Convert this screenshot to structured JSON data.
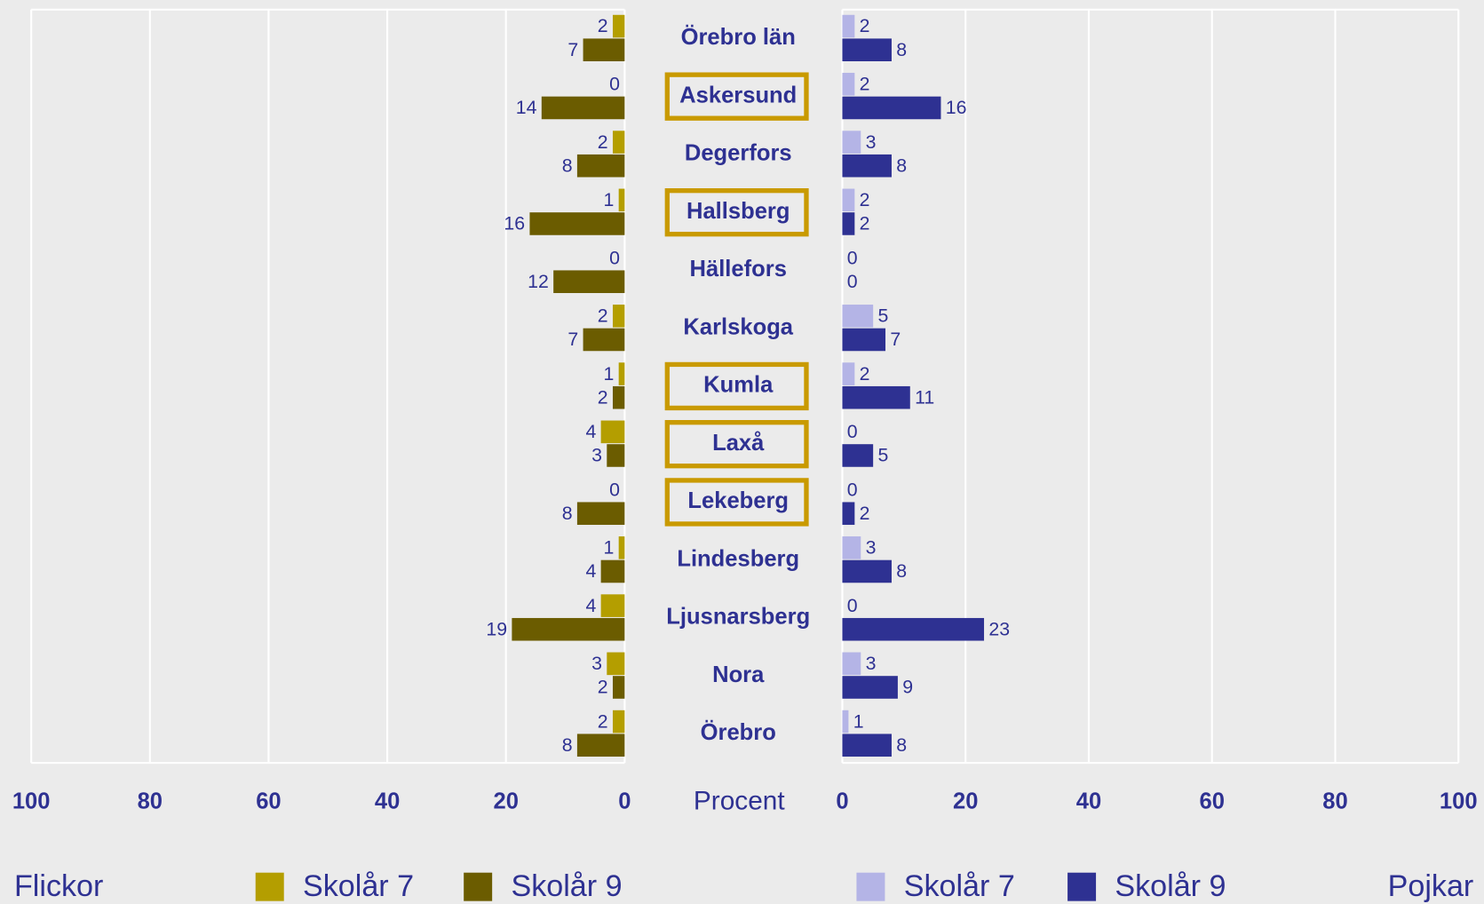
{
  "chart_data": {
    "type": "butterfly",
    "x_label": "Procent",
    "categories": [
      "Örebro län",
      "Askersund",
      "Degerfors",
      "Hallsberg",
      "Hällefors",
      "Karlskoga",
      "Kumla",
      "Laxå",
      "Lekeberg",
      "Lindesberg",
      "Ljusnarsberg",
      "Nora",
      "Örebro"
    ],
    "highlighted_categories": [
      "Askersund",
      "Hallsberg",
      "Kumla",
      "Laxå",
      "Lekeberg"
    ],
    "highlight_color": "#c99a00",
    "xlim": [
      0,
      100
    ],
    "xticks": [
      0,
      20,
      40,
      60,
      80,
      100
    ],
    "grid": true,
    "panels": [
      {
        "name": "Flickor",
        "side": "left",
        "series": [
          {
            "name": "Skolår 7",
            "color": "#b49e00",
            "values": [
              2,
              0,
              2,
              1,
              0,
              2,
              1,
              4,
              0,
              1,
              4,
              3,
              2
            ]
          },
          {
            "name": "Skolår 9",
            "color": "#6b5c00",
            "values": [
              7,
              14,
              8,
              16,
              12,
              7,
              2,
              3,
              8,
              4,
              19,
              2,
              8
            ]
          }
        ]
      },
      {
        "name": "Pojkar",
        "side": "right",
        "series": [
          {
            "name": "Skolår 7",
            "color": "#b4b4e6",
            "values": [
              2,
              2,
              3,
              2,
              0,
              5,
              2,
              0,
              0,
              3,
              0,
              3,
              1
            ]
          },
          {
            "name": "Skolår 9",
            "color": "#2e3192",
            "values": [
              8,
              16,
              8,
              2,
              0,
              7,
              11,
              5,
              2,
              8,
              23,
              9,
              8
            ]
          }
        ]
      }
    ]
  }
}
